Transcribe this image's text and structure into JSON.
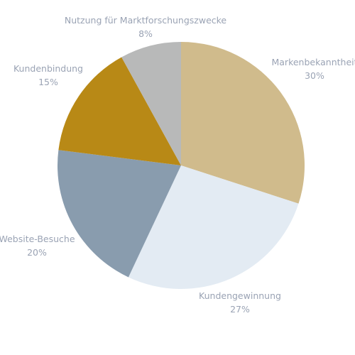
{
  "chart_data": {
    "type": "pie",
    "title": "",
    "start_angle_deg": 0,
    "direction": "clockwise",
    "legend": "none",
    "slices": [
      {
        "label": "Markenbekanntheit",
        "value": 30,
        "value_label": "30%",
        "color": "#d0bb8c"
      },
      {
        "label": "Kundengewinnung",
        "value": 27,
        "value_label": "27%",
        "color": "#e3ebf3"
      },
      {
        "label": "Website-Besuche",
        "value": 20,
        "value_label": "20%",
        "color": "#899cae"
      },
      {
        "label": "Kundenbindung",
        "value": 15,
        "value_label": "15%",
        "color": "#b88916"
      },
      {
        "label": "Nutzung für Marktforschungszwecke",
        "value": 8,
        "value_label": "8%",
        "color": "#b8b9b9"
      }
    ]
  }
}
